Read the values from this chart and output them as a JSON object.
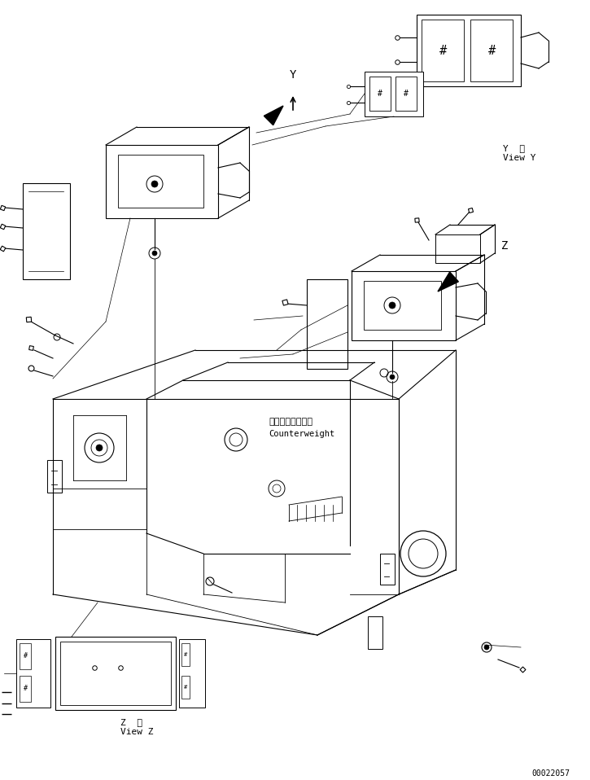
{
  "title": "",
  "background_color": "#ffffff",
  "line_color": "#000000",
  "fig_width": 7.25,
  "fig_height": 9.58,
  "dpi": 100,
  "part_number": "00022057",
  "label_y_view": "Y  視\nView Y",
  "label_z_view": "Z  視\nView Z",
  "label_counterweight_jp": "カウンタウェイト",
  "label_counterweight_en": "Counterweight"
}
